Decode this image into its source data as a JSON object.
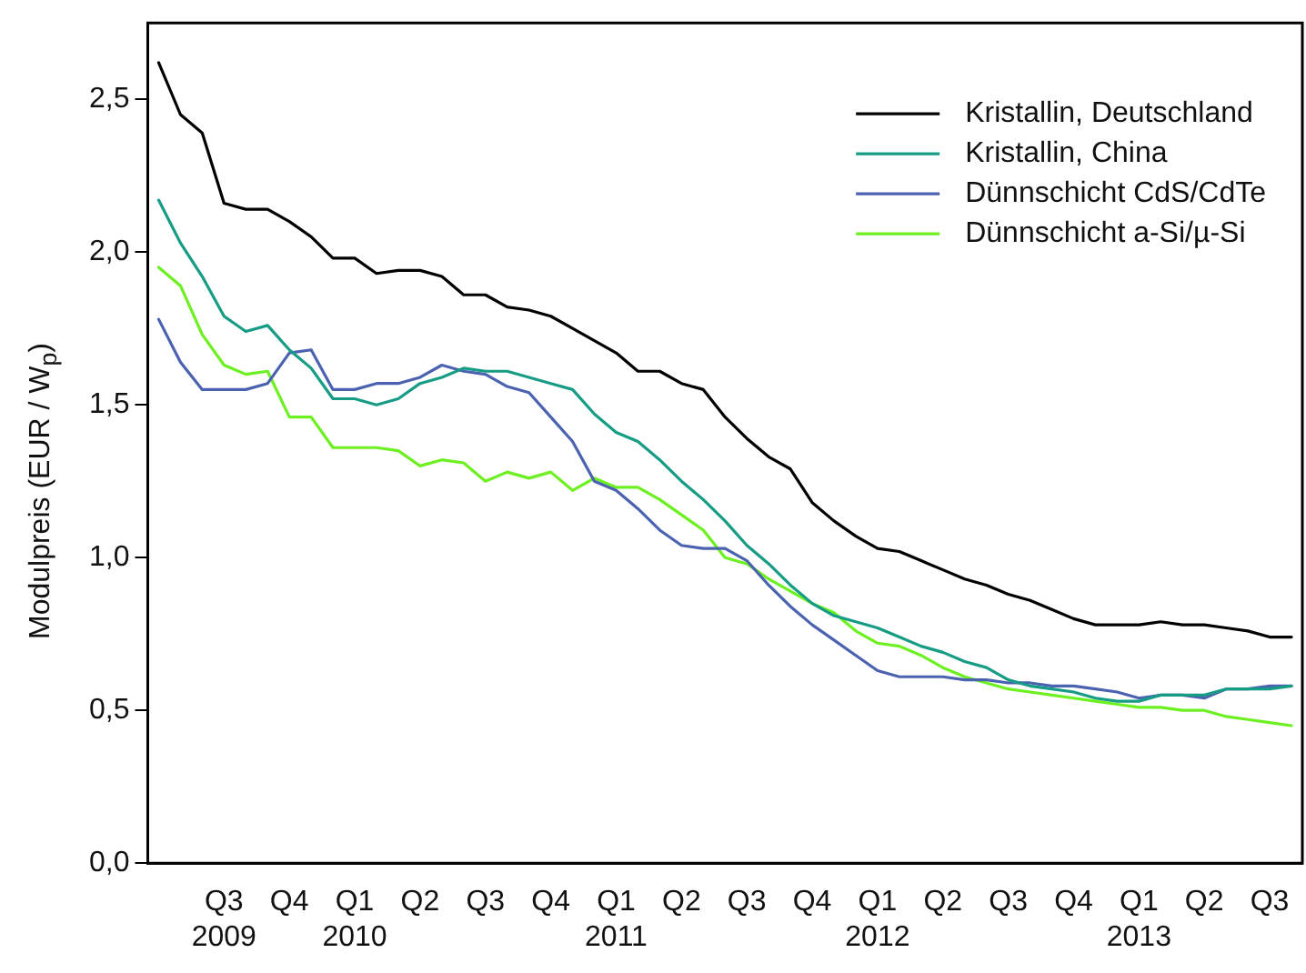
{
  "chart_data": {
    "type": "line",
    "ylabel": "Modulpreis (EUR / W$_{p}$)",
    "categories": [
      null,
      null,
      null,
      "Q3 2009",
      null,
      null,
      "Q4",
      null,
      null,
      "Q1 2010",
      null,
      null,
      "Q2",
      null,
      null,
      "Q3",
      null,
      null,
      "Q4",
      null,
      null,
      "Q1 2011",
      null,
      null,
      "Q2",
      null,
      null,
      "Q3",
      null,
      null,
      "Q4",
      null,
      null,
      "Q1 2012",
      null,
      null,
      "Q2",
      null,
      null,
      "Q3",
      null,
      null,
      "Q4",
      null,
      null,
      "Q1 2013",
      null,
      null,
      "Q2",
      null,
      null,
      "Q3",
      null
    ],
    "series": [
      {
        "name": "Kristallin, Deutschland",
        "color": "#000000",
        "values": [
          2.62,
          2.45,
          2.39,
          2.16,
          2.14,
          2.14,
          2.1,
          2.05,
          1.98,
          1.98,
          1.93,
          1.94,
          1.94,
          1.92,
          1.86,
          1.86,
          1.82,
          1.81,
          1.79,
          1.75,
          1.71,
          1.67,
          1.61,
          1.61,
          1.57,
          1.55,
          1.46,
          1.39,
          1.33,
          1.29,
          1.18,
          1.12,
          1.07,
          1.03,
          1.02,
          0.99,
          0.96,
          0.93,
          0.91,
          0.88,
          0.86,
          0.83,
          0.8,
          0.78,
          0.78,
          0.78,
          0.79,
          0.78,
          0.78,
          0.77,
          0.76,
          0.74,
          0.74
        ]
      },
      {
        "name": "Kristallin, China",
        "color": "#169c84",
        "values": [
          2.17,
          2.03,
          1.92,
          1.79,
          1.74,
          1.76,
          1.68,
          1.62,
          1.52,
          1.52,
          1.5,
          1.52,
          1.57,
          1.59,
          1.62,
          1.61,
          1.61,
          1.59,
          1.57,
          1.55,
          1.47,
          1.41,
          1.38,
          1.32,
          1.25,
          1.19,
          1.12,
          1.04,
          0.98,
          0.91,
          0.85,
          0.81,
          0.79,
          0.77,
          0.74,
          0.71,
          0.69,
          0.66,
          0.64,
          0.6,
          0.58,
          0.57,
          0.56,
          0.54,
          0.53,
          0.53,
          0.55,
          0.55,
          0.55,
          0.57,
          0.57,
          0.57,
          0.58
        ]
      },
      {
        "name": "Dünnschicht CdS/CdTe",
        "color": "#4a62b0",
        "values": [
          1.78,
          1.64,
          1.55,
          1.55,
          1.55,
          1.57,
          1.67,
          1.68,
          1.55,
          1.55,
          1.57,
          1.57,
          1.59,
          1.63,
          1.61,
          1.6,
          1.56,
          1.54,
          1.46,
          1.38,
          1.25,
          1.22,
          1.16,
          1.09,
          1.04,
          1.03,
          1.03,
          0.99,
          0.91,
          0.84,
          0.78,
          0.73,
          0.68,
          0.63,
          0.61,
          0.61,
          0.61,
          0.6,
          0.6,
          0.59,
          0.59,
          0.58,
          0.58,
          0.57,
          0.56,
          0.54,
          0.55,
          0.55,
          0.54,
          0.57,
          0.57,
          0.58,
          0.58
        ]
      },
      {
        "name": "Dünnschicht a-Si/µ-Si",
        "color": "#6cf020",
        "values": [
          1.95,
          1.89,
          1.73,
          1.63,
          1.6,
          1.61,
          1.46,
          1.46,
          1.36,
          1.36,
          1.36,
          1.35,
          1.3,
          1.32,
          1.31,
          1.25,
          1.28,
          1.26,
          1.28,
          1.22,
          1.26,
          1.23,
          1.23,
          1.19,
          1.14,
          1.09,
          1.0,
          0.98,
          0.93,
          0.89,
          0.85,
          0.82,
          0.76,
          0.72,
          0.71,
          0.68,
          0.64,
          0.61,
          0.59,
          0.57,
          0.56,
          0.55,
          0.54,
          0.53,
          0.52,
          0.51,
          0.51,
          0.5,
          0.5,
          0.48,
          0.47,
          0.46,
          0.45
        ]
      }
    ],
    "ylim": [
      0,
      2.75
    ],
    "yticks": [
      {
        "value": 0,
        "label": "0,0"
      },
      {
        "value": 0.5,
        "label": "0,5"
      },
      {
        "value": 1,
        "label": "1,0"
      },
      {
        "value": 1.5,
        "label": "1,5"
      },
      {
        "value": 2,
        "label": "2,0"
      },
      {
        "value": 2.5,
        "label": "2,5"
      }
    ],
    "legend": "top right",
    "grid": false,
    "marker": "none",
    "line_style": "solid"
  }
}
